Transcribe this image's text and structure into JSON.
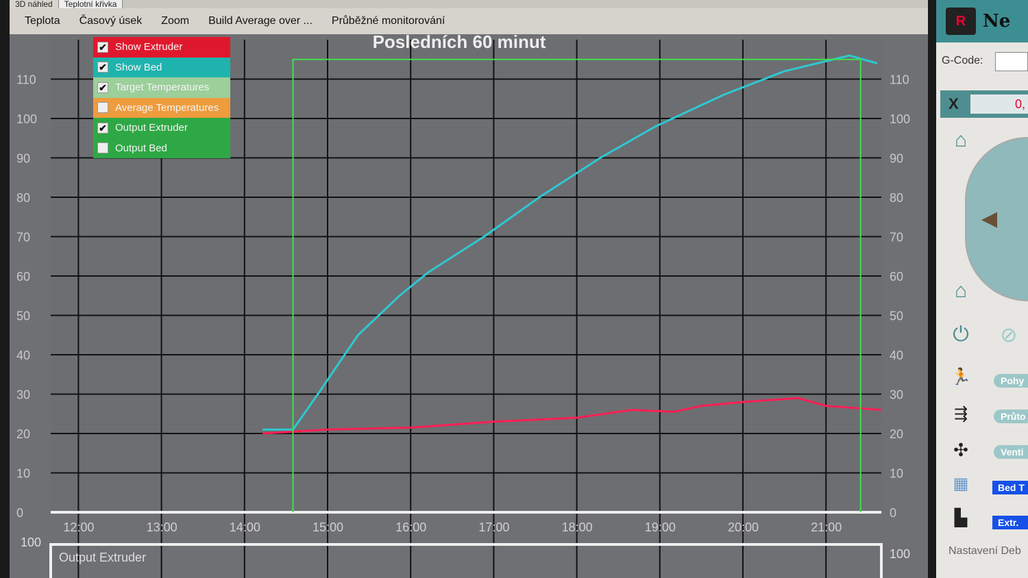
{
  "tabs": [
    "3D náhled",
    "Teplotní křivka"
  ],
  "menu": [
    "Teplota",
    "Časový úsek",
    "Zoom",
    "Build Average over ...",
    "Průběžné monitorování"
  ],
  "legend": [
    {
      "label": "Show Extruder",
      "checked": true,
      "color": "#e0182d"
    },
    {
      "label": "Show Bed",
      "checked": true,
      "color": "#1fb3ad"
    },
    {
      "label": "Target Temperatures",
      "checked": true,
      "color": "#9ccf9a"
    },
    {
      "label": "Average Temperatures",
      "checked": false,
      "color": "#ee9c3e"
    },
    {
      "label": "Output Extruder",
      "checked": true,
      "color": "#2ea845"
    },
    {
      "label": "Output Bed",
      "checked": false,
      "color": "#2ea845"
    }
  ],
  "chart_data": {
    "type": "line",
    "title": "Posledních 60 minut",
    "xlim": [
      "11:40",
      "21:40"
    ],
    "ylim": [
      0,
      120
    ],
    "yticks": [
      0,
      10,
      20,
      30,
      40,
      50,
      60,
      70,
      80,
      90,
      100,
      110
    ],
    "xticks": [
      "12:00",
      "13:00",
      "14:00",
      "15:00",
      "16:00",
      "17:00",
      "18:00",
      "19:00",
      "20:00",
      "21:00"
    ],
    "grid": true,
    "series": [
      {
        "name": "Show Extruder",
        "color": "#ff1f55",
        "x": [
          "14:13",
          "15:00",
          "16:00",
          "17:00",
          "18:00",
          "18:40",
          "19:10",
          "19:30",
          "20:00",
          "20:40",
          "21:00",
          "21:40"
        ],
        "y": [
          20,
          21,
          21.5,
          23,
          24,
          26,
          25.5,
          27,
          28,
          29,
          27,
          26
        ]
      },
      {
        "name": "Show Bed",
        "color": "#2ec8d2",
        "x": [
          "14:13",
          "14:35",
          "14:53",
          "15:22",
          "15:52",
          "16:13",
          "16:53",
          "17:33",
          "18:17",
          "18:57",
          "19:46",
          "20:30",
          "21:17",
          "21:37"
        ],
        "y": [
          21,
          21,
          30,
          45,
          55,
          61,
          70,
          80,
          90,
          98,
          106,
          112,
          116,
          114
        ]
      },
      {
        "name": "Target Temperatures",
        "color": "#3fe04f",
        "x": [
          "14:35",
          "14:35",
          "21:25",
          "21:25"
        ],
        "y": [
          0,
          115,
          115,
          0
        ]
      }
    ],
    "lower_panel": {
      "label": "Output Extruder",
      "ymax_label": "100"
    }
  },
  "right_panel": {
    "title": "Ne",
    "gcode_label": "G-Code:",
    "x_label": "X",
    "x_value": "0,",
    "buttons": [
      "Pohy",
      "Průto",
      "Venti"
    ],
    "blue_buttons": [
      "Bed T",
      "Extr."
    ],
    "footer": "Nastavení Deb"
  }
}
